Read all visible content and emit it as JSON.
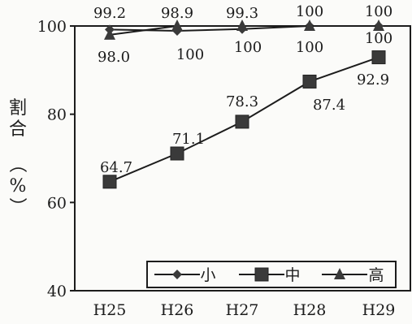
{
  "chart_data": {
    "type": "line",
    "categories": [
      "H25",
      "H26",
      "H27",
      "H28",
      "H29"
    ],
    "series": [
      {
        "name": "小",
        "values": [
          99.2,
          98.9,
          99.3,
          100,
          100
        ],
        "marker": "diamond"
      },
      {
        "name": "中",
        "values": [
          64.7,
          71.1,
          78.3,
          87.4,
          92.9
        ],
        "marker": "square"
      },
      {
        "name": "高",
        "values": [
          98.0,
          100,
          100,
          100,
          100
        ],
        "marker": "triangle"
      }
    ],
    "data_labels": {
      "小": [
        "99.2",
        "98.9",
        "99.3",
        "100",
        "100"
      ],
      "中": [
        "64.7",
        "71.1",
        "78.3",
        "87.4",
        "92.9"
      ],
      "高": [
        "98.0",
        "100",
        "100",
        "100",
        "100"
      ]
    },
    "title": "",
    "xlabel": "",
    "ylabel": "割合（%）",
    "ylabel_chars": [
      "割",
      "合",
      "（",
      "%",
      "）"
    ],
    "ylim": [
      40,
      100
    ],
    "yticks": [
      40,
      60,
      80,
      100
    ],
    "grid": false,
    "legend_position": "bottom-right",
    "colors": {
      "line": "#1c1c1c",
      "marker": "#3a3a3a",
      "axis": "#1c1c1c"
    }
  }
}
